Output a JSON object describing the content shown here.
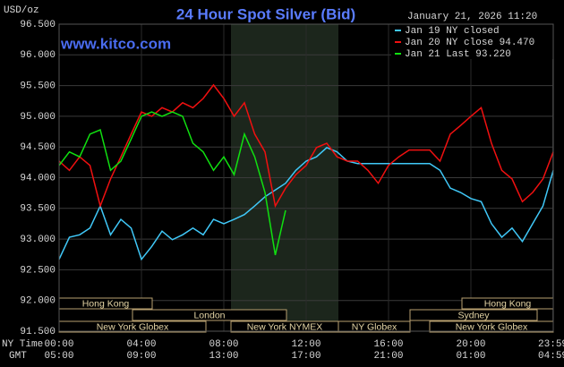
{
  "chart_data": {
    "type": "line",
    "title": "24 Hour Spot Silver (Bid)",
    "watermark": "www.kitco.com",
    "timestamp": "January 21, 2026 11:20",
    "y_label": "USD/oz",
    "x_row_labels": [
      "NY Time",
      "GMT"
    ],
    "x": [
      0,
      0.5,
      1,
      1.5,
      2,
      2.5,
      3,
      3.5,
      4,
      4.5,
      5,
      5.5,
      6,
      6.5,
      7,
      7.5,
      8,
      8.5,
      9,
      9.5,
      10,
      10.5,
      11,
      11.5,
      12,
      12.5,
      13,
      13.5,
      14,
      14.5,
      15,
      15.5,
      16,
      16.5,
      17,
      17.5,
      18,
      18.5,
      19,
      19.5,
      20,
      20.5,
      21,
      21.5,
      22,
      22.5,
      23,
      23.5,
      24
    ],
    "xlim": [
      0,
      24
    ],
    "xticks": [
      {
        "value": 0,
        "label": "00:00"
      },
      {
        "value": 4,
        "label": "04:00"
      },
      {
        "value": 8,
        "label": "08:00"
      },
      {
        "value": 12,
        "label": "12:00"
      },
      {
        "value": 16,
        "label": "16:00"
      },
      {
        "value": 20,
        "label": "20:00"
      },
      {
        "value": 23.98,
        "label": "23:59"
      }
    ],
    "gmt_labels": [
      "05:00",
      "09:00",
      "13:00",
      "17:00",
      "21:00",
      "01:00",
      "04:59"
    ],
    "ylim": [
      91.5,
      96.5
    ],
    "yticks": [
      {
        "value": 91.5,
        "label": "91.500"
      },
      {
        "value": 92,
        "label": "92.000"
      },
      {
        "value": 92.5,
        "label": "92.500"
      },
      {
        "value": 93,
        "label": "93.000"
      },
      {
        "value": 93.5,
        "label": "93.500"
      },
      {
        "value": 94,
        "label": "94.000"
      },
      {
        "value": 94.5,
        "label": "94.500"
      },
      {
        "value": 95,
        "label": "95.000"
      },
      {
        "value": 95.5,
        "label": "95.500"
      },
      {
        "value": 96,
        "label": "96.000"
      },
      {
        "value": 96.5,
        "label": "96.500"
      }
    ],
    "grid": true,
    "sessions": [
      "Hong Kong",
      "Hong Kong",
      "London",
      "Sydney",
      "New York Globex",
      "New York NYMEX",
      "NY Globex",
      "New York Globex"
    ],
    "series": [
      {
        "name": "Jan 19 NY closed",
        "color": "#40c8f8",
        "values": [
          92.67,
          93.03,
          93.07,
          93.18,
          93.54,
          93.07,
          93.32,
          93.18,
          92.67,
          92.88,
          93.13,
          92.99,
          93.07,
          93.18,
          93.07,
          93.32,
          93.25,
          93.32,
          93.4,
          93.54,
          93.69,
          93.8,
          93.91,
          94.12,
          94.27,
          94.34,
          94.49,
          94.42,
          94.27,
          94.23,
          94.23,
          94.23,
          94.23,
          94.23,
          94.23,
          94.23,
          94.23,
          94.12,
          93.83,
          93.76,
          93.66,
          93.61,
          93.25,
          93.03,
          93.18,
          92.96,
          93.25,
          93.54,
          94.12
        ]
      },
      {
        "name": "Jan 20 NY close 94.470",
        "color": "#f01010",
        "values": [
          94.27,
          94.12,
          94.34,
          94.2,
          93.54,
          93.98,
          94.34,
          94.71,
          95.07,
          95,
          95.14,
          95.07,
          95.22,
          95.14,
          95.29,
          95.51,
          95.29,
          95,
          95.22,
          94.71,
          94.42,
          93.54,
          93.83,
          94.05,
          94.2,
          94.49,
          94.56,
          94.34,
          94.27,
          94.27,
          94.12,
          93.91,
          94.2,
          94.34,
          94.45,
          94.45,
          94.45,
          94.27,
          94.71,
          94.85,
          95,
          95.14,
          94.56,
          94.12,
          93.98,
          93.61,
          93.76,
          93.98,
          94.42
        ]
      },
      {
        "name": "Jan 21 Last 93.220",
        "color": "#10e010",
        "values": [
          94.2,
          94.42,
          94.34,
          94.71,
          94.78,
          94.12,
          94.27,
          94.63,
          95,
          95.07,
          95,
          95.07,
          95,
          94.56,
          94.42,
          94.12,
          94.34,
          94.05,
          94.71,
          94.34,
          93.76,
          92.74,
          93.47,
          null,
          null,
          null,
          null,
          null,
          null,
          null,
          null,
          null,
          null,
          null,
          null,
          null,
          null,
          null,
          null,
          null,
          null,
          null,
          null,
          null,
          null,
          null,
          null,
          null,
          null
        ]
      }
    ]
  }
}
